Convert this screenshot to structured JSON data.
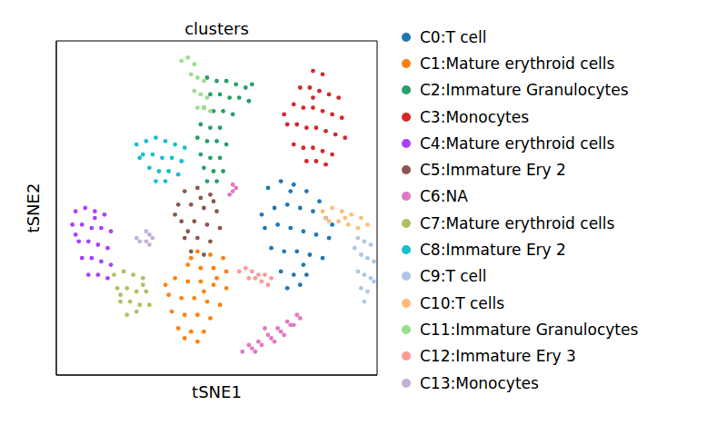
{
  "chart_data": {
    "type": "scatter",
    "title": "clusters",
    "x_label": "tSNE1",
    "y_label": "tSNE2",
    "xlim": [
      0,
      100
    ],
    "ylim": [
      0,
      100
    ],
    "tick_labels": false,
    "grid": false,
    "legend": "right",
    "marker": "circle",
    "series": [
      {
        "name": "C0:T cell",
        "color": "#1f77b4",
        "x": [
          66,
          70,
          74,
          78,
          82,
          68,
          72,
          76,
          80,
          84,
          65,
          69,
          73,
          77,
          81,
          85,
          67,
          71,
          75,
          79,
          83,
          70,
          74,
          78,
          72,
          76,
          64,
          86,
          73,
          77
        ],
        "y": [
          56,
          58,
          57,
          55,
          52,
          50,
          51,
          50,
          49,
          47,
          44,
          45,
          44,
          43,
          42,
          41,
          38,
          37,
          37,
          36,
          35,
          31,
          30,
          30,
          26,
          27,
          48,
          45,
          55,
          33
        ]
      },
      {
        "name": "C1:Mature erythroid cells",
        "color": "#ff7f0e",
        "x": [
          44,
          48,
          52,
          41,
          45,
          49,
          53,
          37,
          41,
          45,
          49,
          53,
          35,
          39,
          43,
          47,
          51,
          36,
          40,
          44,
          48,
          38,
          42,
          46,
          40,
          44,
          34,
          50,
          42,
          46
        ],
        "y": [
          37,
          36,
          35,
          33,
          32,
          32,
          31,
          29,
          28,
          28,
          27,
          26,
          24,
          23,
          23,
          22,
          21,
          19,
          18,
          18,
          17,
          14,
          13,
          13,
          11,
          10,
          27,
          29,
          35,
          25
        ]
      },
      {
        "name": "C2:Immature Granulocytes",
        "color": "#279e68",
        "x": [
          47,
          50,
          53,
          56,
          59,
          48,
          51,
          54,
          57,
          60,
          46,
          49,
          52,
          55,
          45,
          48,
          51,
          44,
          47,
          50,
          53,
          45,
          48,
          51,
          46,
          49,
          52,
          47,
          50,
          61
        ],
        "y": [
          89,
          88,
          88,
          87,
          86,
          84,
          84,
          83,
          83,
          82,
          80,
          79,
          79,
          78,
          75,
          74,
          74,
          71,
          70,
          70,
          69,
          66,
          65,
          65,
          62,
          61,
          61,
          58,
          58,
          87
        ]
      },
      {
        "name": "C3:Monocytes",
        "color": "#d62728",
        "x": [
          80,
          83,
          76,
          79,
          82,
          85,
          88,
          74,
          77,
          80,
          83,
          86,
          89,
          72,
          75,
          78,
          81,
          84,
          87,
          90,
          74,
          77,
          80,
          83,
          86,
          78,
          81,
          84,
          80,
          71
        ],
        "y": [
          91,
          90,
          86,
          86,
          85,
          84,
          83,
          81,
          80,
          80,
          79,
          78,
          77,
          75,
          75,
          74,
          74,
          73,
          72,
          71,
          69,
          68,
          68,
          67,
          66,
          64,
          64,
          63,
          83,
          78
        ]
      },
      {
        "name": "C4:Mature erythroid cells",
        "color": "#aa40fc",
        "x": [
          6,
          9,
          12,
          15,
          5,
          8,
          11,
          14,
          17,
          7,
          10,
          13,
          16,
          8,
          11,
          14,
          17,
          10,
          13,
          16,
          6,
          12
        ],
        "y": [
          49,
          50,
          49,
          48,
          45,
          45,
          44,
          44,
          43,
          40,
          40,
          39,
          38,
          35,
          35,
          34,
          33,
          30,
          30,
          29,
          42,
          47
        ]
      },
      {
        "name": "C5:Immature Ery 2",
        "color": "#8c564b",
        "x": [
          40,
          44,
          48,
          38,
          42,
          46,
          50,
          39,
          43,
          47,
          51,
          40,
          44,
          48,
          42,
          46,
          37,
          45,
          49,
          41
        ],
        "y": [
          55,
          56,
          54,
          51,
          51,
          50,
          49,
          46,
          46,
          45,
          44,
          41,
          41,
          40,
          37,
          36,
          48,
          53,
          52,
          43
        ]
      },
      {
        "name": "C6:NA",
        "color": "#e377c2",
        "x": [
          58,
          61,
          64,
          67,
          70,
          73,
          76,
          60,
          63,
          66,
          69,
          72,
          75,
          62,
          68,
          71,
          74,
          65,
          54,
          55,
          55,
          56
        ],
        "y": [
          7,
          8,
          9,
          11,
          13,
          15,
          17,
          9,
          10,
          12,
          14,
          16,
          18,
          7,
          10,
          12,
          15,
          14,
          54,
          55,
          57,
          56
        ]
      },
      {
        "name": "C7:Mature erythroid cells",
        "color": "#b5bd61",
        "x": [
          18,
          21,
          24,
          27,
          19,
          22,
          25,
          28,
          20,
          23,
          26,
          29,
          22,
          25,
          20,
          27
        ],
        "y": [
          30,
          31,
          30,
          29,
          26,
          26,
          25,
          25,
          22,
          22,
          21,
          21,
          18,
          19,
          24,
          27
        ]
      },
      {
        "name": "C8:Immature Ery 2",
        "color": "#17becf",
        "x": [
          25,
          28,
          31,
          34,
          37,
          40,
          27,
          30,
          33,
          36,
          39,
          29,
          32,
          35,
          38,
          31,
          34,
          26
        ],
        "y": [
          69,
          70,
          71,
          70,
          69,
          68,
          66,
          66,
          65,
          65,
          64,
          62,
          61,
          61,
          60,
          58,
          58,
          65
        ]
      },
      {
        "name": "C9:T cell",
        "color": "#aec7e8",
        "x": [
          94,
          96,
          98,
          95,
          97,
          99,
          94,
          96,
          98,
          95,
          97,
          96,
          93,
          99
        ],
        "y": [
          41,
          40,
          39,
          36,
          35,
          34,
          31,
          30,
          29,
          26,
          25,
          22,
          38,
          28
        ]
      },
      {
        "name": "C10:T cells",
        "color": "#ffbb78",
        "x": [
          83,
          86,
          89,
          92,
          95,
          97,
          85,
          88,
          91,
          94,
          84,
          90
        ],
        "y": [
          49,
          50,
          49,
          48,
          47,
          45,
          46,
          46,
          45,
          44,
          47,
          47
        ]
      },
      {
        "name": "C11:Immature Granulocytes",
        "color": "#98df8a",
        "x": [
          39,
          41,
          43,
          42,
          44,
          46,
          43,
          45,
          47,
          44,
          46,
          48
        ],
        "y": [
          94,
          95,
          93,
          90,
          89,
          88,
          85,
          84,
          83,
          80,
          80,
          79
        ]
      },
      {
        "name": "C12:Immature Ery 3",
        "color": "#ff9896",
        "x": [
          57,
          59,
          61,
          63,
          65,
          67,
          60,
          62,
          64,
          66
        ],
        "y": [
          31,
          32,
          31,
          30,
          30,
          29,
          29,
          29,
          28,
          27
        ]
      },
      {
        "name": "C13:Monocytes",
        "color": "#c5b0d5",
        "x": [
          28,
          29,
          30,
          29,
          28,
          25,
          26
        ],
        "y": [
          40,
          42,
          41,
          39,
          43,
          41,
          40
        ]
      }
    ]
  }
}
